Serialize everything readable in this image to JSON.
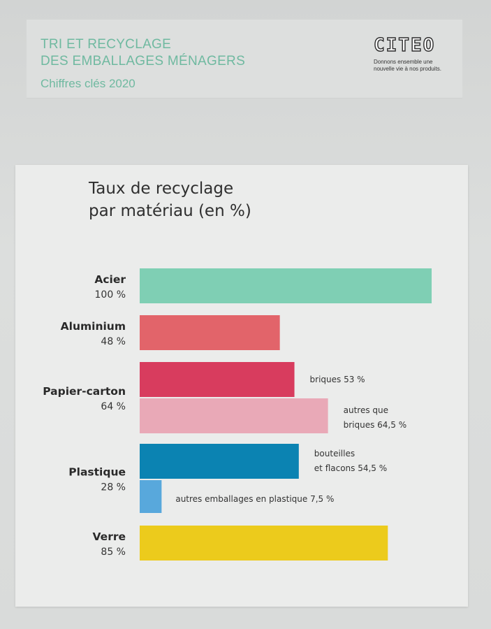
{
  "header": {
    "title_line1": "TRI ET RECYCLAGE",
    "title_line2": "DES EMBALLAGES MÉNAGERS",
    "subtitle": "Chiffres clés 2020"
  },
  "logo": {
    "word": "CITEO",
    "tagline_line1": "Donnons ensemble une",
    "tagline_line2": "nouvelle vie à nos produits."
  },
  "colors": {
    "acier": "#7fcfb4",
    "aluminium": "#e2646a",
    "papier_briques": "#d83c5e",
    "papier_autres": "#e9a9b7",
    "plastique_bouteilles": "#0b83b2",
    "plastique_autres": "#58a8dc",
    "verre": "#eccb1c",
    "header_text": "#6fb9a0"
  },
  "chart_data": {
    "type": "bar",
    "orientation": "horizontal",
    "title_line1": "Taux de recyclage",
    "title_line2": "par matériau (en %)",
    "xlim": [
      0,
      100
    ],
    "grid": false,
    "categories": [
      {
        "name": "Acier",
        "value_label": "100 %",
        "value": 100,
        "bars": [
          {
            "key": "acier",
            "value": 100,
            "color": "acier",
            "label_lines": []
          }
        ]
      },
      {
        "name": "Aluminium",
        "value_label": "48 %",
        "value": 48,
        "bars": [
          {
            "key": "aluminium",
            "value": 48,
            "color": "aluminium",
            "label_lines": []
          }
        ]
      },
      {
        "name": "Papier-carton",
        "value_label": "64 %",
        "value": 64,
        "bars": [
          {
            "key": "papier-briques",
            "value": 53,
            "color": "papier_briques",
            "label_lines": [
              "briques 53 %"
            ]
          },
          {
            "key": "papier-autres",
            "value": 64.5,
            "color": "papier_autres",
            "label_lines": [
              "autres que",
              "briques 64,5 %"
            ]
          }
        ]
      },
      {
        "name": "Plastique",
        "value_label": "28 %",
        "value": 28,
        "bars": [
          {
            "key": "plastique-bouteilles",
            "value": 54.5,
            "color": "plastique_bouteilles",
            "label_lines": [
              "bouteilles",
              "et flacons 54,5 %"
            ]
          },
          {
            "key": "plastique-autres",
            "value": 7.5,
            "color": "plastique_autres",
            "label_lines": [
              "autres emballages en plastique 7,5 %"
            ]
          }
        ]
      },
      {
        "name": "Verre",
        "value_label": "85 %",
        "value": 85,
        "bars": [
          {
            "key": "verre",
            "value": 85,
            "color": "verre",
            "label_lines": []
          }
        ]
      }
    ]
  }
}
